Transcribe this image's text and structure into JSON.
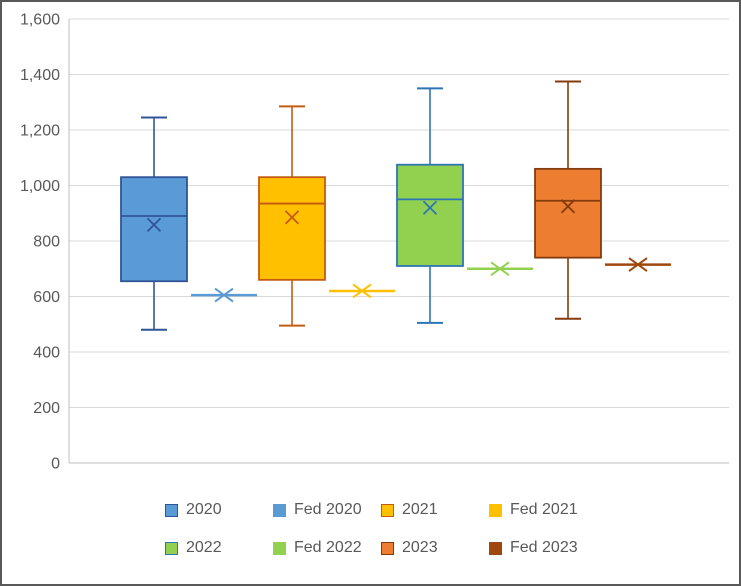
{
  "chart_data": {
    "type": "boxplot",
    "title": "",
    "xlabel": "",
    "ylabel": "",
    "ylim": [
      0,
      1600
    ],
    "ytick_interval": 200,
    "ytick_labels": [
      "0",
      "200",
      "400",
      "600",
      "800",
      "1,000",
      "1,200",
      "1,400",
      "1,600"
    ],
    "grid": true,
    "legend_position": "bottom",
    "groups": [
      "2020",
      "2021",
      "2022",
      "2023"
    ],
    "series": [
      {
        "name": "2020",
        "kind": "box",
        "fill": "#5B9BD5",
        "stroke": "#2F5597",
        "min": 480,
        "q1": 655,
        "median": 890,
        "mean": 858,
        "q3": 1030,
        "max": 1245
      },
      {
        "name": "Fed 2020",
        "kind": "line-marker",
        "color": "#5B9BD5",
        "value": 605
      },
      {
        "name": "2021",
        "kind": "box",
        "fill": "#FFC000",
        "stroke": "#C55A11",
        "min": 495,
        "q1": 660,
        "median": 935,
        "mean": 885,
        "q3": 1030,
        "max": 1285
      },
      {
        "name": "Fed 2021",
        "kind": "line-marker",
        "color": "#FFC000",
        "value": 620
      },
      {
        "name": "2022",
        "kind": "box",
        "fill": "#92D050",
        "stroke": "#2E75B6",
        "min": 505,
        "q1": 710,
        "median": 950,
        "mean": 920,
        "q3": 1075,
        "max": 1350
      },
      {
        "name": "Fed 2022",
        "kind": "line-marker",
        "color": "#92D050",
        "value": 700
      },
      {
        "name": "2023",
        "kind": "box",
        "fill": "#ED7D31",
        "stroke": "#843C0C",
        "min": 520,
        "q1": 740,
        "median": 945,
        "mean": 925,
        "q3": 1060,
        "max": 1375
      },
      {
        "name": "Fed 2023",
        "kind": "line-marker",
        "color": "#9E480E",
        "value": 715
      }
    ],
    "colors": {
      "gridline": "#D9D9D9",
      "axis_line": "#BFBFBF",
      "tick_text": "#595959",
      "legend_text": "#595959"
    }
  }
}
